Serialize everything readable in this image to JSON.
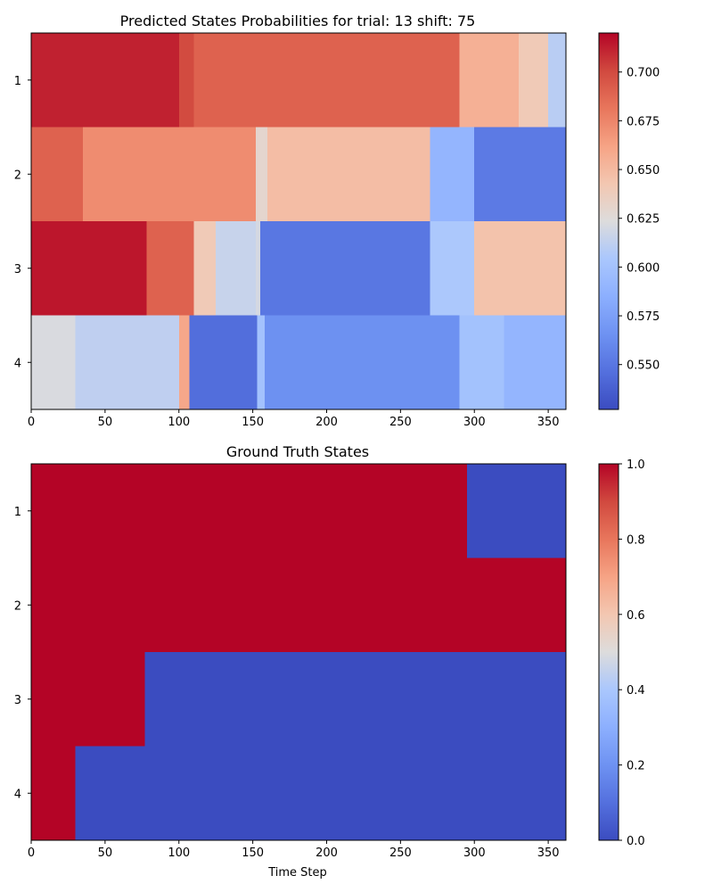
{
  "chart_data": [
    {
      "type": "heatmap",
      "title": "Predicted States Probabilities for trial: 13 shift: 75",
      "xlabel": "",
      "ylabel": "",
      "x_range": [
        0,
        362
      ],
      "x_ticks": [
        0,
        50,
        100,
        150,
        200,
        250,
        300,
        350
      ],
      "rows": [
        "1",
        "2",
        "3",
        "4"
      ],
      "colormap": "coolwarm",
      "color_range": [
        0.527,
        0.72
      ],
      "colorbar_ticks": [
        "0.550",
        "0.575",
        "0.600",
        "0.625",
        "0.650",
        "0.675",
        "0.700"
      ],
      "colorbar_tick_values": [
        0.55,
        0.575,
        0.6,
        0.625,
        0.65,
        0.675,
        0.7
      ],
      "series": [
        {
          "name": "1",
          "segments": [
            [
              0,
              100,
              0.712
            ],
            [
              100,
              110,
              0.7
            ],
            [
              110,
              290,
              0.69
            ],
            [
              290,
              330,
              0.655
            ],
            [
              330,
              350,
              0.64
            ],
            [
              350,
              362,
              0.61
            ]
          ]
        },
        {
          "name": "2",
          "segments": [
            [
              0,
              35,
              0.69
            ],
            [
              35,
              152,
              0.672
            ],
            [
              152,
              160,
              0.63
            ],
            [
              160,
              270,
              0.648
            ],
            [
              270,
              300,
              0.59
            ],
            [
              300,
              362,
              0.552
            ]
          ]
        },
        {
          "name": "3",
          "segments": [
            [
              0,
              78,
              0.715
            ],
            [
              78,
              110,
              0.69
            ],
            [
              110,
              125,
              0.64
            ],
            [
              125,
              152,
              0.615
            ],
            [
              152,
              155,
              0.62
            ],
            [
              155,
              270,
              0.55
            ],
            [
              270,
              300,
              0.605
            ],
            [
              300,
              362,
              0.645
            ]
          ]
        },
        {
          "name": "4",
          "segments": [
            [
              0,
              30,
              0.622
            ],
            [
              30,
              100,
              0.612
            ],
            [
              100,
              107,
              0.66
            ],
            [
              107,
              153,
              0.545
            ],
            [
              153,
              158,
              0.6
            ],
            [
              158,
              290,
              0.565
            ],
            [
              290,
              320,
              0.6
            ],
            [
              320,
              362,
              0.59
            ]
          ]
        }
      ]
    },
    {
      "type": "heatmap",
      "title": "Ground Truth States",
      "xlabel": "Time Step",
      "ylabel": "",
      "x_range": [
        0,
        362
      ],
      "x_ticks": [
        0,
        50,
        100,
        150,
        200,
        250,
        300,
        350
      ],
      "rows": [
        "1",
        "2",
        "3",
        "4"
      ],
      "colormap": "coolwarm",
      "color_range": [
        0,
        1
      ],
      "colorbar_ticks": [
        "0.0",
        "0.2",
        "0.4",
        "0.6",
        "0.8",
        "1.0"
      ],
      "colorbar_tick_values": [
        0,
        0.2,
        0.4,
        0.6,
        0.8,
        1.0
      ],
      "series": [
        {
          "name": "1",
          "segments": [
            [
              0,
              295,
              1
            ],
            [
              295,
              362,
              0
            ]
          ]
        },
        {
          "name": "2",
          "segments": [
            [
              0,
              362,
              1
            ]
          ]
        },
        {
          "name": "3",
          "segments": [
            [
              0,
              77,
              1
            ],
            [
              77,
              362,
              0
            ]
          ]
        },
        {
          "name": "4",
          "segments": [
            [
              0,
              30,
              1
            ],
            [
              30,
              362,
              0
            ]
          ]
        }
      ]
    }
  ]
}
